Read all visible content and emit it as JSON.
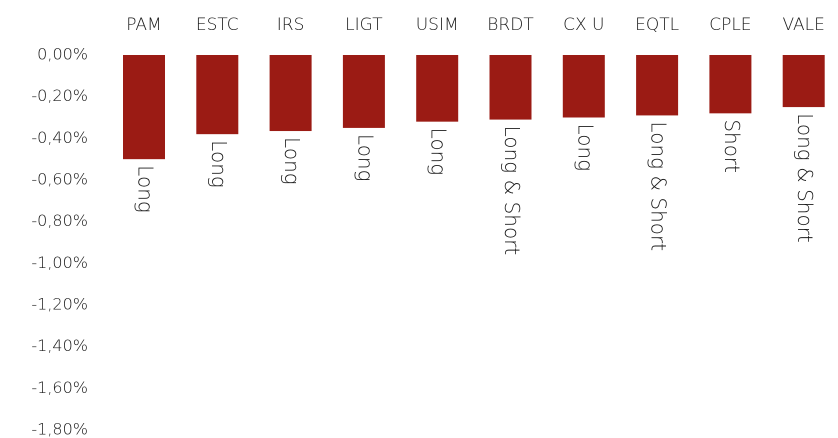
{
  "chart_data": {
    "type": "bar",
    "categories": [
      "PAM",
      "ESTC",
      "IRS",
      "LIGT",
      "USIM",
      "BRDT",
      "CX U",
      "EQTL",
      "CPLE",
      "VALE"
    ],
    "values": [
      -0.5,
      -0.38,
      -0.365,
      -0.35,
      -0.32,
      -0.31,
      -0.3,
      -0.29,
      -0.28,
      -0.25
    ],
    "annotations": [
      "Long",
      "Long",
      "Long",
      "Long",
      "Long",
      "Long & Short",
      "Long",
      "Long & Short",
      "Short",
      "Long & Short"
    ],
    "color": "#9b1b14",
    "ylim": [
      -1.8,
      0
    ],
    "yticks": [
      {
        "value": 0,
        "label": "0,00%"
      },
      {
        "value": -0.2,
        "label": "-0,20%"
      },
      {
        "value": -0.4,
        "label": "-0,40%"
      },
      {
        "value": -0.6,
        "label": "-0,60%"
      },
      {
        "value": -0.8,
        "label": "-0,80%"
      },
      {
        "value": -1.0,
        "label": "-1,00%"
      },
      {
        "value": -1.2,
        "label": "-1,20%"
      },
      {
        "value": -1.4,
        "label": "-1,40%"
      },
      {
        "value": -1.6,
        "label": "-1,60%"
      },
      {
        "value": -1.8,
        "label": "-1,80%"
      }
    ],
    "grid": false
  }
}
